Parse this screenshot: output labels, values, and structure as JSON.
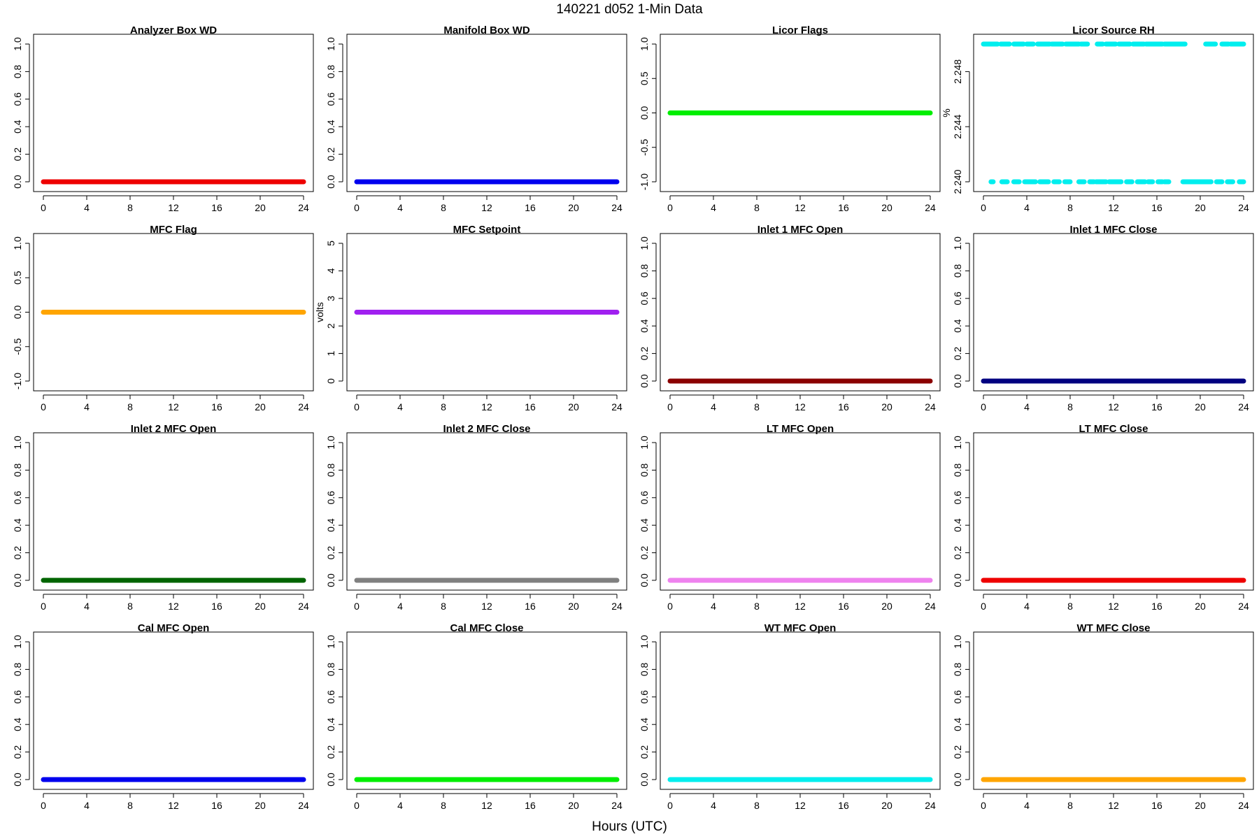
{
  "title": "140221    d052    1-Min Data",
  "xlabel": "Hours (UTC)",
  "chart_data": [
    {
      "type": "scatter",
      "title": "Analyzer Box WD",
      "ylabel": "",
      "color": "#ee0000",
      "xlim": [
        0,
        24
      ],
      "ylim": [
        0,
        1
      ],
      "xticks": [
        0,
        4,
        8,
        12,
        16,
        20,
        24
      ],
      "yticks": [
        "0.0",
        "0.2",
        "0.4",
        "0.6",
        "0.8",
        "1.0"
      ],
      "series": [
        {
          "x": [
            0,
            24
          ],
          "y": [
            0,
            0
          ]
        }
      ]
    },
    {
      "type": "scatter",
      "title": "Manifold Box WD",
      "ylabel": "",
      "color": "#0000ee",
      "xlim": [
        0,
        24
      ],
      "ylim": [
        0,
        1
      ],
      "xticks": [
        0,
        4,
        8,
        12,
        16,
        20,
        24
      ],
      "yticks": [
        "0.0",
        "0.2",
        "0.4",
        "0.6",
        "0.8",
        "1.0"
      ],
      "series": [
        {
          "x": [
            0,
            24
          ],
          "y": [
            0,
            0
          ]
        }
      ]
    },
    {
      "type": "scatter",
      "title": "Licor Flags",
      "ylabel": "",
      "color": "#00ee00",
      "xlim": [
        0,
        24
      ],
      "ylim": [
        -1,
        1
      ],
      "xticks": [
        0,
        4,
        8,
        12,
        16,
        20,
        24
      ],
      "yticks": [
        "-1.0",
        "-0.5",
        "0.0",
        "0.5",
        "1.0"
      ],
      "series": [
        {
          "x": [
            0,
            24
          ],
          "y": [
            0,
            0
          ]
        }
      ]
    },
    {
      "type": "scatter",
      "title": "Licor Source RH",
      "ylabel": "%",
      "color": "#00eeee",
      "xlim": [
        0,
        24
      ],
      "ylim": [
        2.24,
        2.25
      ],
      "xticks": [
        0,
        4,
        8,
        12,
        16,
        20,
        24
      ],
      "yticks": [
        "2.240",
        "2.244",
        "2.248"
      ],
      "series": [
        {
          "name": "high",
          "y_value": 2.25,
          "segments": [
            [
              0,
              1.3
            ],
            [
              1.6,
              2.4
            ],
            [
              2.8,
              3.7
            ],
            [
              4.0,
              4.6
            ],
            [
              5.0,
              6.1
            ],
            [
              6.3,
              7.3
            ],
            [
              7.6,
              8.8
            ],
            [
              9.0,
              9.6
            ],
            [
              10.5,
              11.0
            ],
            [
              11.3,
              12.2
            ],
            [
              12.5,
              13.5
            ],
            [
              13.8,
              14.8
            ],
            [
              15.0,
              16.5
            ],
            [
              16.7,
              18.6
            ],
            [
              20.5,
              21.4
            ],
            [
              22.0,
              22.6
            ],
            [
              22.8,
              24.0
            ]
          ]
        },
        {
          "name": "low",
          "y_value": 2.24,
          "segments": [
            [
              0.7,
              0.9
            ],
            [
              1.7,
              2.2
            ],
            [
              2.8,
              3.3
            ],
            [
              3.8,
              4.8
            ],
            [
              5.2,
              6.0
            ],
            [
              6.5,
              7.0
            ],
            [
              7.5,
              8.0
            ],
            [
              8.8,
              9.3
            ],
            [
              9.8,
              10.2
            ],
            [
              10.4,
              11.3
            ],
            [
              11.6,
              12.7
            ],
            [
              13.2,
              13.7
            ],
            [
              14.2,
              14.9
            ],
            [
              15.2,
              15.6
            ],
            [
              16.1,
              16.5
            ],
            [
              16.7,
              17.1
            ],
            [
              18.4,
              21.0
            ],
            [
              21.5,
              22.0
            ],
            [
              22.5,
              23.0
            ],
            [
              23.6,
              24.0
            ]
          ]
        }
      ]
    },
    {
      "type": "scatter",
      "title": "MFC Flag",
      "ylabel": "",
      "color": "#ffa500",
      "xlim": [
        0,
        24
      ],
      "ylim": [
        -1,
        1
      ],
      "xticks": [
        0,
        4,
        8,
        12,
        16,
        20,
        24
      ],
      "yticks": [
        "-1.0",
        "-0.5",
        "0.0",
        "0.5",
        "1.0"
      ],
      "series": [
        {
          "x": [
            0,
            24
          ],
          "y": [
            0,
            0
          ]
        }
      ]
    },
    {
      "type": "scatter",
      "title": "MFC Setpoint",
      "ylabel": "volts",
      "color": "#a020f0",
      "xlim": [
        0,
        24
      ],
      "ylim": [
        0,
        5
      ],
      "xticks": [
        0,
        4,
        8,
        12,
        16,
        20,
        24
      ],
      "yticks": [
        "0",
        "1",
        "2",
        "3",
        "4",
        "5"
      ],
      "series": [
        {
          "x": [
            0,
            24
          ],
          "y": [
            2.5,
            2.5
          ]
        }
      ]
    },
    {
      "type": "scatter",
      "title": "Inlet 1 MFC Open",
      "ylabel": "",
      "color": "#8b0000",
      "xlim": [
        0,
        24
      ],
      "ylim": [
        0,
        1
      ],
      "xticks": [
        0,
        4,
        8,
        12,
        16,
        20,
        24
      ],
      "yticks": [
        "0.0",
        "0.2",
        "0.4",
        "0.6",
        "0.8",
        "1.0"
      ],
      "series": [
        {
          "x": [
            0,
            24
          ],
          "y": [
            0,
            0
          ]
        }
      ]
    },
    {
      "type": "scatter",
      "title": "Inlet 1 MFC Close",
      "ylabel": "",
      "color": "#000080",
      "xlim": [
        0,
        24
      ],
      "ylim": [
        0,
        1
      ],
      "xticks": [
        0,
        4,
        8,
        12,
        16,
        20,
        24
      ],
      "yticks": [
        "0.0",
        "0.2",
        "0.4",
        "0.6",
        "0.8",
        "1.0"
      ],
      "series": [
        {
          "x": [
            0,
            24
          ],
          "y": [
            0,
            0
          ]
        }
      ]
    },
    {
      "type": "scatter",
      "title": "Inlet 2 MFC Open",
      "ylabel": "",
      "color": "#006400",
      "xlim": [
        0,
        24
      ],
      "ylim": [
        0,
        1
      ],
      "xticks": [
        0,
        4,
        8,
        12,
        16,
        20,
        24
      ],
      "yticks": [
        "0.0",
        "0.2",
        "0.4",
        "0.6",
        "0.8",
        "1.0"
      ],
      "series": [
        {
          "x": [
            0,
            24
          ],
          "y": [
            0,
            0
          ]
        }
      ]
    },
    {
      "type": "scatter",
      "title": "Inlet 2 MFC Close",
      "ylabel": "",
      "color": "#808080",
      "xlim": [
        0,
        24
      ],
      "ylim": [
        0,
        1
      ],
      "xticks": [
        0,
        4,
        8,
        12,
        16,
        20,
        24
      ],
      "yticks": [
        "0.0",
        "0.2",
        "0.4",
        "0.6",
        "0.8",
        "1.0"
      ],
      "series": [
        {
          "x": [
            0,
            24
          ],
          "y": [
            0,
            0
          ]
        }
      ]
    },
    {
      "type": "scatter",
      "title": "LT MFC Open",
      "ylabel": "",
      "color": "#ee82ee",
      "xlim": [
        0,
        24
      ],
      "ylim": [
        0,
        1
      ],
      "xticks": [
        0,
        4,
        8,
        12,
        16,
        20,
        24
      ],
      "yticks": [
        "0.0",
        "0.2",
        "0.4",
        "0.6",
        "0.8",
        "1.0"
      ],
      "series": [
        {
          "x": [
            0,
            24
          ],
          "y": [
            0,
            0
          ]
        }
      ]
    },
    {
      "type": "scatter",
      "title": "LT MFC Close",
      "ylabel": "",
      "color": "#ee0000",
      "xlim": [
        0,
        24
      ],
      "ylim": [
        0,
        1
      ],
      "xticks": [
        0,
        4,
        8,
        12,
        16,
        20,
        24
      ],
      "yticks": [
        "0.0",
        "0.2",
        "0.4",
        "0.6",
        "0.8",
        "1.0"
      ],
      "series": [
        {
          "x": [
            0,
            24
          ],
          "y": [
            0,
            0
          ]
        }
      ]
    },
    {
      "type": "scatter",
      "title": "Cal MFC Open",
      "ylabel": "",
      "color": "#0000ee",
      "xlim": [
        0,
        24
      ],
      "ylim": [
        0,
        1
      ],
      "xticks": [
        0,
        4,
        8,
        12,
        16,
        20,
        24
      ],
      "yticks": [
        "0.0",
        "0.2",
        "0.4",
        "0.6",
        "0.8",
        "1.0"
      ],
      "series": [
        {
          "x": [
            0,
            24
          ],
          "y": [
            0,
            0
          ]
        }
      ]
    },
    {
      "type": "scatter",
      "title": "Cal MFC Close",
      "ylabel": "",
      "color": "#00ee00",
      "xlim": [
        0,
        24
      ],
      "ylim": [
        0,
        1
      ],
      "xticks": [
        0,
        4,
        8,
        12,
        16,
        20,
        24
      ],
      "yticks": [
        "0.0",
        "0.2",
        "0.4",
        "0.6",
        "0.8",
        "1.0"
      ],
      "series": [
        {
          "x": [
            0,
            24
          ],
          "y": [
            0,
            0
          ]
        }
      ]
    },
    {
      "type": "scatter",
      "title": "WT MFC Open",
      "ylabel": "",
      "color": "#00eeee",
      "xlim": [
        0,
        24
      ],
      "ylim": [
        0,
        1
      ],
      "xticks": [
        0,
        4,
        8,
        12,
        16,
        20,
        24
      ],
      "yticks": [
        "0.0",
        "0.2",
        "0.4",
        "0.6",
        "0.8",
        "1.0"
      ],
      "series": [
        {
          "x": [
            0,
            24
          ],
          "y": [
            0,
            0
          ]
        }
      ]
    },
    {
      "type": "scatter",
      "title": "WT MFC Close",
      "ylabel": "",
      "color": "#ffa500",
      "xlim": [
        0,
        24
      ],
      "ylim": [
        0,
        1
      ],
      "xticks": [
        0,
        4,
        8,
        12,
        16,
        20,
        24
      ],
      "yticks": [
        "0.0",
        "0.2",
        "0.4",
        "0.6",
        "0.8",
        "1.0"
      ],
      "series": [
        {
          "x": [
            0,
            24
          ],
          "y": [
            0,
            0
          ]
        }
      ]
    }
  ]
}
